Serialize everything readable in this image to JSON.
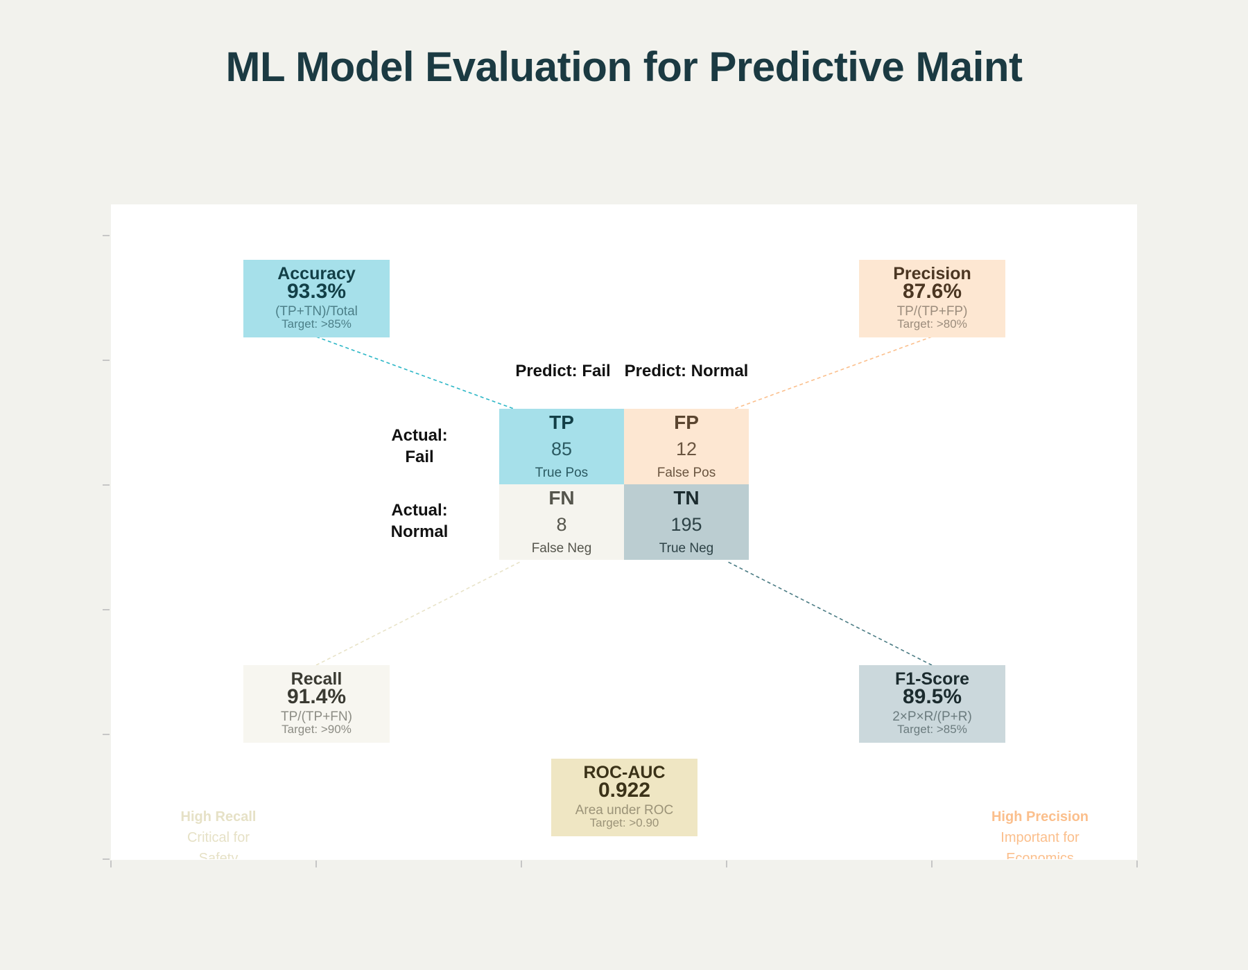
{
  "title": "ML Model Evaluation for Predictive Maint",
  "colors": {
    "accuracy": "#a6e0ea",
    "precision": "#fde7d2",
    "recall": "#f7f6f0",
    "f1": "#cbd8dc",
    "roc": "#efe6c3",
    "tp": "#a6e0ea",
    "fp": "#fde7d2",
    "fn": "#f5f4ee",
    "tn": "#bbcdd1"
  },
  "matrix": {
    "col_headers": [
      "Predict: Fail",
      "Predict: Normal"
    ],
    "row_headers": [
      "Actual:\nFail",
      "Actual:\nNormal"
    ],
    "cells": {
      "tp": {
        "label": "TP",
        "value": "85",
        "desc": "True Pos"
      },
      "fp": {
        "label": "FP",
        "value": "12",
        "desc": "False Pos"
      },
      "fn": {
        "label": "FN",
        "value": "8",
        "desc": "False Neg"
      },
      "tn": {
        "label": "TN",
        "value": "195",
        "desc": "True Neg"
      }
    }
  },
  "metrics": {
    "accuracy": {
      "title": "Accuracy",
      "value": "93.3%",
      "formula": "(TP+TN)/Total",
      "target": "Target: >85%"
    },
    "precision": {
      "title": "Precision",
      "value": "87.6%",
      "formula": "TP/(TP+FP)",
      "target": "Target: >80%"
    },
    "recall": {
      "title": "Recall",
      "value": "91.4%",
      "formula": "TP/(TP+FN)",
      "target": "Target: >90%"
    },
    "f1": {
      "title": "F1-Score",
      "value": "89.5%",
      "formula": "2×P×R/(P+R)",
      "target": "Target: >85%"
    },
    "roc": {
      "title": "ROC-AUC",
      "value": "0.922",
      "formula": "Area under ROC",
      "target": "Target: >0.90"
    }
  },
  "notes": {
    "left": {
      "heading": "High Recall",
      "line1": "Critical for",
      "line2": "Safety"
    },
    "right": {
      "heading": "High Precision",
      "line1": "Important for",
      "line2": "Economics"
    }
  }
}
